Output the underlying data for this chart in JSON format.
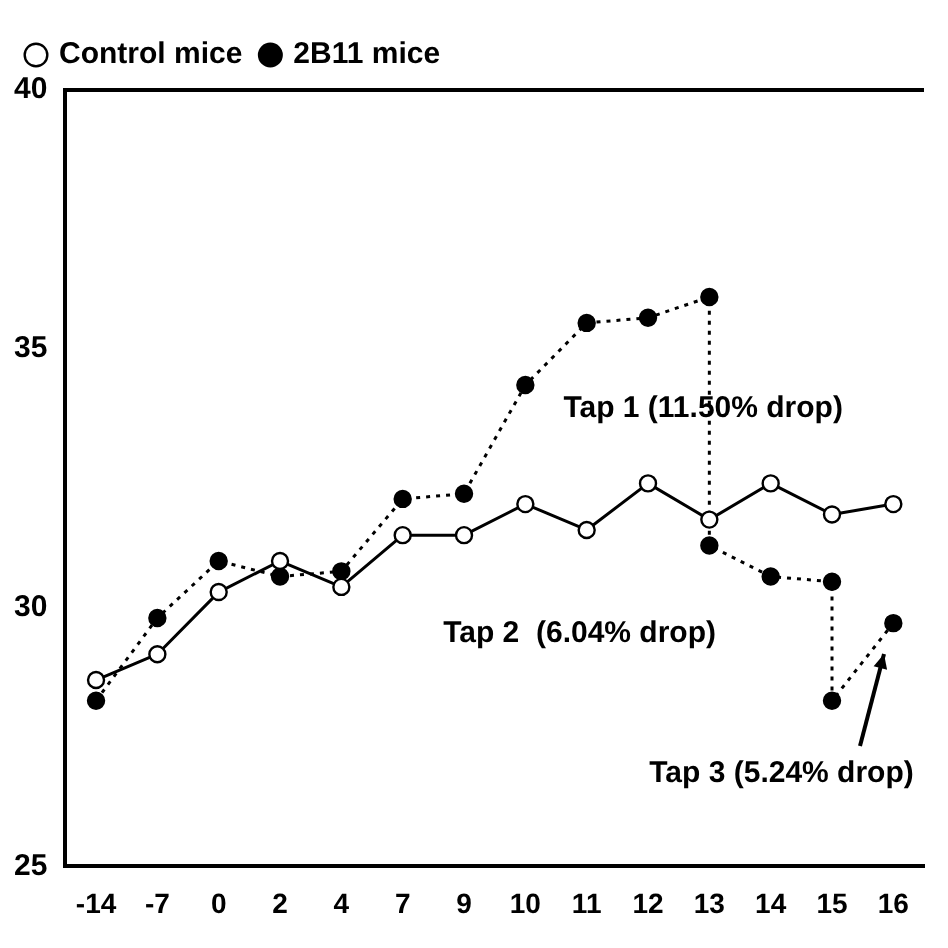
{
  "chart_data": {
    "type": "line",
    "categories": [
      "-14",
      "-7",
      "0",
      "2",
      "4",
      "7",
      "9",
      "10",
      "11",
      "12",
      "13",
      "14",
      "15",
      "16"
    ],
    "series": [
      {
        "name": "Control mice",
        "color": "#000000",
        "marker": "circle",
        "line_style": "solid",
        "values": [
          28.6,
          29.1,
          30.3,
          30.9,
          30.4,
          31.4,
          31.4,
          32.0,
          31.5,
          32.4,
          31.7,
          32.4,
          31.8,
          32.0
        ]
      },
      {
        "name": "2B11 mice",
        "color": "#000000",
        "marker": "circle",
        "line_style": "dotted",
        "x": [
          "-14",
          "-7",
          "0",
          "2",
          "4",
          "7",
          "9",
          "10",
          "11",
          "12",
          "13",
          "13",
          "14",
          "15",
          "15",
          "16"
        ],
        "values": [
          28.2,
          29.8,
          30.9,
          30.6,
          30.7,
          32.1,
          32.2,
          34.3,
          35.5,
          35.6,
          36.0,
          31.2,
          30.6,
          30.5,
          28.2,
          29.7
        ]
      }
    ],
    "ylim": [
      25,
      40
    ],
    "yticks": [
      25,
      30,
      35,
      40
    ],
    "grid": false,
    "legend": "top left",
    "annotations": [
      "Tap 1 (11.50% drop)",
      "Tap 2  (6.04% drop)",
      "Tap 3 (5.24% drop)"
    ]
  }
}
